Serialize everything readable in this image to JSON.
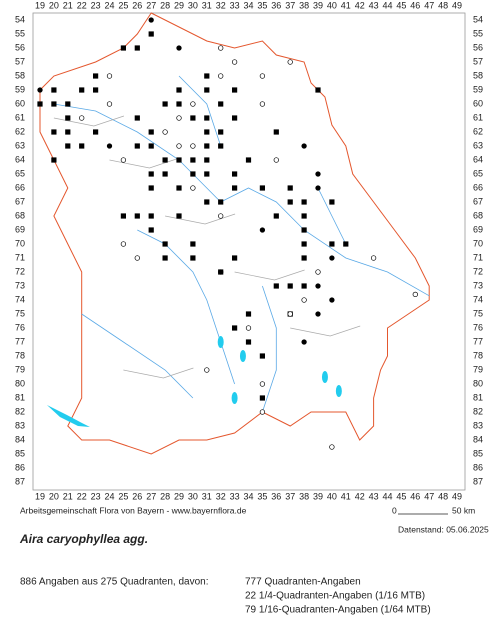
{
  "header": {
    "axis_labels_x": [
      19,
      20,
      21,
      22,
      23,
      24,
      25,
      26,
      27,
      28,
      29,
      30,
      31,
      32,
      33,
      34,
      35,
      36,
      37,
      38,
      39,
      40,
      41,
      42,
      43,
      44,
      45,
      46,
      47,
      48,
      49
    ],
    "axis_labels_y": [
      54,
      55,
      56,
      57,
      58,
      59,
      60,
      61,
      62,
      63,
      64,
      65,
      66,
      67,
      68,
      69,
      70,
      71,
      72,
      73,
      74,
      75,
      76,
      77,
      78,
      79,
      80,
      81,
      82,
      83,
      84,
      85,
      86,
      87
    ]
  },
  "footer": {
    "credit": "Arbeitsgemeinschaft Flora von Bayern - www.bayernflora.de",
    "scale_start": "0",
    "scale_end": "50 km",
    "date": "Datenstand: 05.06.2025"
  },
  "species": "Aira caryophyllea agg.",
  "summary": {
    "total": "886 Angaben aus 275 Quadranten, davon:",
    "lines": [
      "777 Quadranten-Angaben",
      "22 1/4-Quadranten-Angaben (1/16 MTB)",
      "79 1/16-Quadranten-Angaben (1/64 MTB)"
    ]
  }
}
